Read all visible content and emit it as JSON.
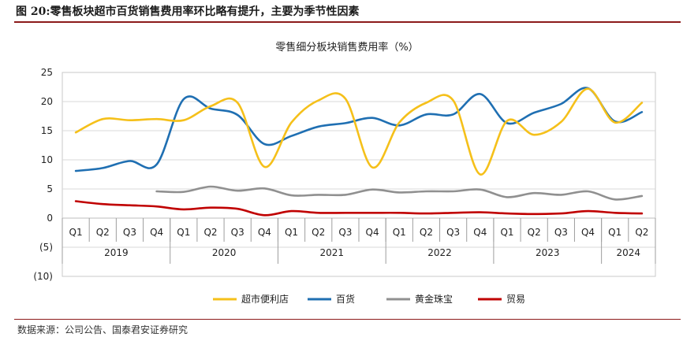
{
  "figure": {
    "title": "图 20:零售板块超市百货销售费用率环比略有提升，主要为季节性因素",
    "source": "数据来源：公司公告、国泰君安证券研究"
  },
  "chart_data": {
    "type": "line",
    "title": "零售细分板块销售费用率（%）",
    "xlabel": "",
    "ylabel": "",
    "ylim": [
      -10,
      25
    ],
    "y_ticks": [
      25,
      20,
      15,
      10,
      5,
      0,
      -5,
      -10
    ],
    "y_tick_labels": [
      "25",
      "20",
      "15",
      "10",
      "5",
      "0",
      "(5)",
      "(10)"
    ],
    "categories": [
      "Q1",
      "Q2",
      "Q3",
      "Q4",
      "Q1",
      "Q2",
      "Q3",
      "Q4",
      "Q1",
      "Q2",
      "Q3",
      "Q4",
      "Q1",
      "Q2",
      "Q3",
      "Q4",
      "Q1",
      "Q2",
      "Q3",
      "Q4",
      "Q1",
      "Q2"
    ],
    "years": [
      {
        "label": "2019",
        "quarters": 4
      },
      {
        "label": "2020",
        "quarters": 4
      },
      {
        "label": "2021",
        "quarters": 4
      },
      {
        "label": "2022",
        "quarters": 4
      },
      {
        "label": "2023",
        "quarters": 4
      },
      {
        "label": "2024",
        "quarters": 2
      }
    ],
    "grid": true,
    "legend_position": "bottom",
    "series": [
      {
        "name": "超市便利店",
        "color": "#f5c01a",
        "values": [
          14.7,
          17.0,
          16.8,
          17.0,
          16.8,
          19.2,
          19.8,
          8.8,
          16.4,
          20.2,
          20.5,
          8.7,
          16.4,
          19.8,
          20.2,
          7.5,
          16.7,
          14.3,
          16.5,
          22.2,
          16.4,
          19.8
        ]
      },
      {
        "name": "百货",
        "color": "#1f6fb2",
        "values": [
          8.1,
          8.6,
          9.8,
          9.2,
          20.4,
          18.8,
          17.7,
          12.7,
          14.1,
          15.7,
          16.3,
          17.2,
          15.9,
          17.8,
          17.8,
          21.3,
          16.3,
          18.1,
          19.6,
          22.3,
          16.6,
          18.2
        ]
      },
      {
        "name": "黄金珠宝",
        "color": "#909090",
        "values": [
          null,
          null,
          null,
          4.6,
          4.5,
          5.4,
          4.7,
          5.1,
          3.9,
          4.0,
          4.0,
          4.9,
          4.4,
          4.6,
          4.6,
          4.9,
          3.6,
          4.3,
          4.0,
          4.6,
          3.2,
          3.8
        ]
      },
      {
        "name": "贸易",
        "color": "#c00000",
        "values": [
          2.9,
          2.4,
          2.2,
          2.0,
          1.5,
          1.8,
          1.6,
          0.5,
          1.2,
          0.9,
          0.9,
          0.9,
          0.9,
          0.8,
          0.9,
          1.0,
          0.8,
          0.7,
          0.8,
          1.2,
          0.9,
          0.8
        ]
      }
    ]
  }
}
